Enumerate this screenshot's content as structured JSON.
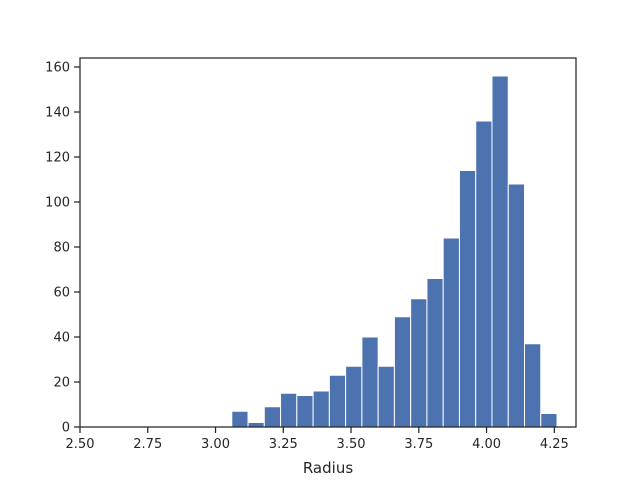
{
  "chart_data": {
    "type": "bar",
    "title": "",
    "xlabel": "Radius",
    "ylabel": "",
    "xlim": [
      2.5,
      4.33
    ],
    "ylim": [
      0,
      164
    ],
    "xticks": [
      2.5,
      2.75,
      3.0,
      3.25,
      3.5,
      3.75,
      4.0,
      4.25
    ],
    "xtick_labels": [
      "2.50",
      "2.75",
      "3.00",
      "3.25",
      "3.50",
      "3.75",
      "4.00",
      "4.25"
    ],
    "yticks": [
      0,
      20,
      40,
      60,
      80,
      100,
      120,
      140,
      160
    ],
    "ytick_labels": [
      "0",
      "20",
      "40",
      "60",
      "80",
      "100",
      "120",
      "140",
      "160"
    ],
    "grid": false,
    "bar_color": "#4c72b0",
    "bins": [
      {
        "x0": 3.06,
        "x1": 3.12,
        "count": 7
      },
      {
        "x0": 3.12,
        "x1": 3.18,
        "count": 2
      },
      {
        "x0": 3.18,
        "x1": 3.24,
        "count": 9
      },
      {
        "x0": 3.24,
        "x1": 3.3,
        "count": 15
      },
      {
        "x0": 3.3,
        "x1": 3.36,
        "count": 14
      },
      {
        "x0": 3.36,
        "x1": 3.42,
        "count": 16
      },
      {
        "x0": 3.42,
        "x1": 3.48,
        "count": 23
      },
      {
        "x0": 3.48,
        "x1": 3.54,
        "count": 27
      },
      {
        "x0": 3.54,
        "x1": 3.6,
        "count": 40
      },
      {
        "x0": 3.6,
        "x1": 3.66,
        "count": 27
      },
      {
        "x0": 3.66,
        "x1": 3.72,
        "count": 49
      },
      {
        "x0": 3.72,
        "x1": 3.78,
        "count": 57
      },
      {
        "x0": 3.78,
        "x1": 3.84,
        "count": 66
      },
      {
        "x0": 3.84,
        "x1": 3.9,
        "count": 84
      },
      {
        "x0": 3.9,
        "x1": 3.96,
        "count": 114
      },
      {
        "x0": 3.96,
        "x1": 4.02,
        "count": 136
      },
      {
        "x0": 4.02,
        "x1": 4.08,
        "count": 156
      },
      {
        "x0": 4.08,
        "x1": 4.14,
        "count": 108
      },
      {
        "x0": 4.14,
        "x1": 4.2,
        "count": 37
      },
      {
        "x0": 4.2,
        "x1": 4.26,
        "count": 6
      }
    ]
  }
}
